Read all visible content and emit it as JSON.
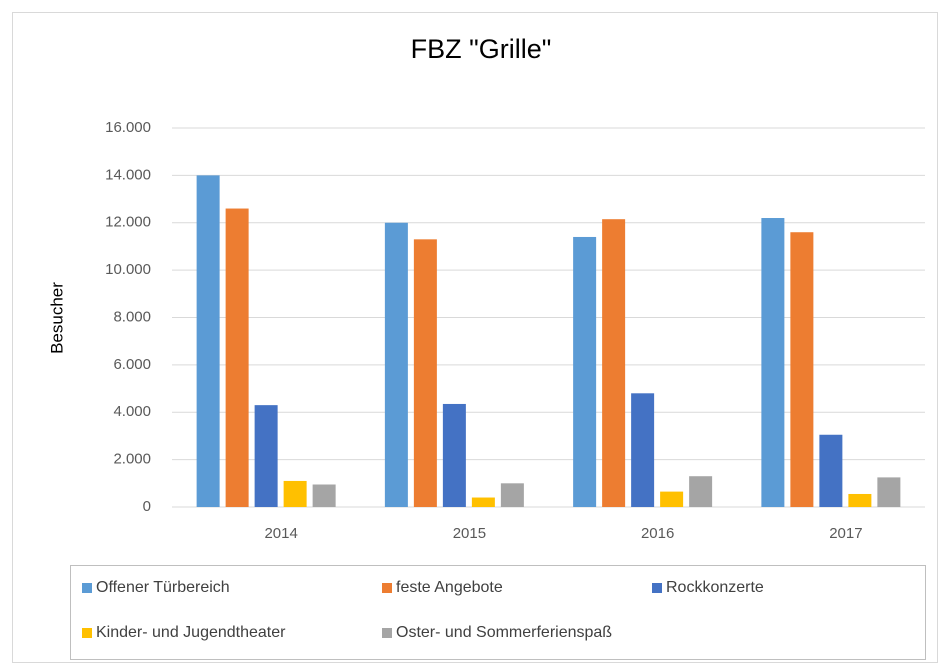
{
  "chart_data": {
    "type": "bar",
    "title": "FBZ \"Grille\"",
    "y_label": "Besucher",
    "categories": [
      "2014",
      "2015",
      "2016",
      "2017"
    ],
    "series": [
      {
        "name": "Offener Türbereich",
        "color": "#5b9bd5",
        "values": [
          14000,
          12000,
          11400,
          12200
        ]
      },
      {
        "name": "feste Angebote",
        "color": "#ed7d31",
        "values": [
          12600,
          11300,
          12150,
          11600
        ]
      },
      {
        "name": "Rockkonzerte",
        "color": "#4472c4",
        "values": [
          4300,
          4350,
          4800,
          3050
        ]
      },
      {
        "name": "Kinder- und Jugendtheater",
        "color": "#ffc000",
        "values": [
          1100,
          400,
          650,
          550
        ]
      },
      {
        "name": "Oster- und Sommerferienspaß",
        "color": "#a5a5a5",
        "values": [
          950,
          1000,
          1300,
          1250
        ]
      }
    ],
    "ylim": [
      0,
      16000
    ],
    "yticks": [
      0,
      {
        "value": 2000,
        "label": "2.000"
      },
      {
        "value": 4000,
        "label": "4.000"
      },
      {
        "value": 6000,
        "label": "6.000"
      },
      {
        "value": 8000,
        "label": "8.000"
      },
      {
        "value": 10000,
        "label": "10.000"
      },
      {
        "value": 12000,
        "label": "12.000"
      },
      {
        "value": 14000,
        "label": "14.000"
      },
      {
        "value": 16000,
        "label": "16.000"
      }
    ],
    "grid": true,
    "legend": "bottom"
  }
}
